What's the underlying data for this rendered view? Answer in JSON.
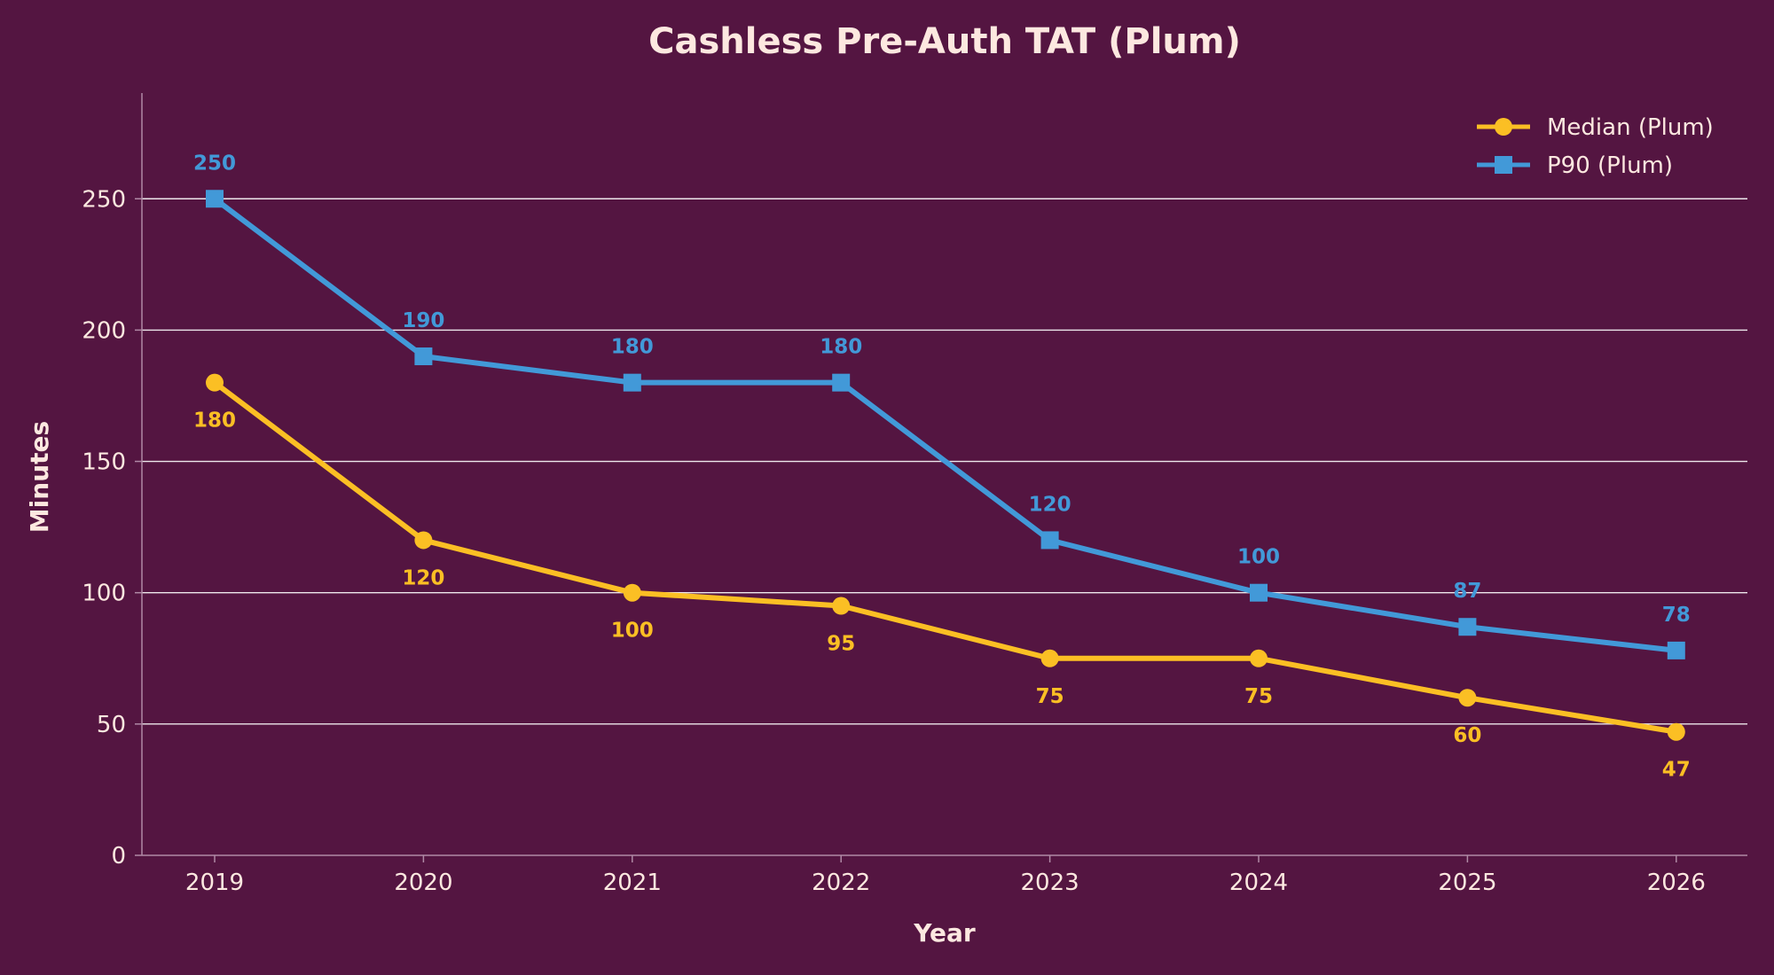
{
  "chart_data": {
    "type": "line",
    "title": "Cashless Pre-Auth TAT (Plum)",
    "xlabel": "Year",
    "ylabel": "Minutes",
    "x": [
      "2019",
      "2020",
      "2021",
      "2022",
      "2023",
      "2024",
      "2025",
      "2026"
    ],
    "ylim": [
      0,
      290
    ],
    "yticks": [
      0,
      50,
      100,
      150,
      200,
      250
    ],
    "grid": "horizontal",
    "legend_position": "top-right",
    "series": [
      {
        "name": "Median (Plum)",
        "values": [
          180,
          120,
          100,
          95,
          75,
          75,
          60,
          47
        ],
        "color": "#fbbf24",
        "marker": "circle",
        "label_placement": "below"
      },
      {
        "name": "P90 (Plum)",
        "values": [
          250,
          190,
          180,
          180,
          120,
          100,
          87,
          78
        ],
        "color": "#4299d8",
        "marker": "square",
        "label_placement": "above"
      }
    ]
  },
  "colors": {
    "background": "#541541",
    "text": "#fde8e0",
    "grid": "#ffffff",
    "axis": "#b08aa6"
  }
}
